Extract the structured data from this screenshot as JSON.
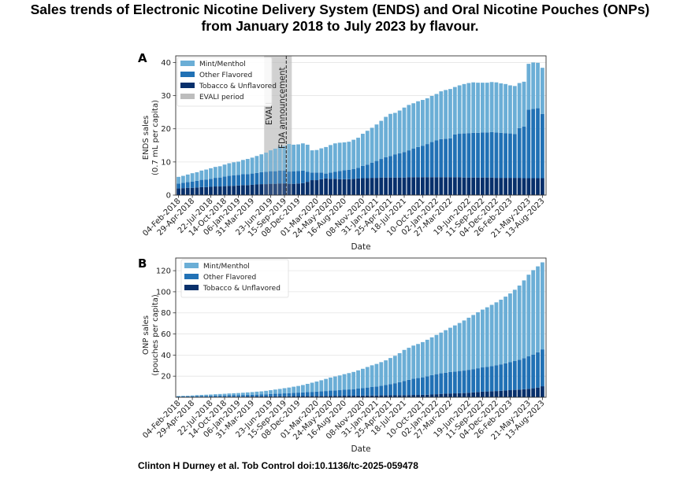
{
  "title_line1": "Sales trends of Electronic Nicotine Delivery System (ENDS) and Oral Nicotine Pouches (ONPs)",
  "title_line2": "from January 2018 to July 2023 by flavour.",
  "citation": "Clinton H Durney et al. Tob Control doi:10.1136/tc-2025-059478",
  "colors": {
    "mint": "#6baed6",
    "other": "#2171b5",
    "tobacco": "#08306b",
    "evali": "#bdbdbd"
  },
  "chart_data": [
    {
      "panel_label": "A",
      "type": "bar",
      "stacked": true,
      "xlabel": "Date",
      "ylabel_line1": "ENDS sales",
      "ylabel_line2": "(0.7 mL per capita)",
      "ylim": [
        0,
        42
      ],
      "yticks": [
        0,
        10,
        20,
        30,
        40
      ],
      "grid": true,
      "legend_position": "top-left",
      "x_tick_labels": [
        "04-Feb-2018",
        "29-Apr-2018",
        "22-Jul-2018",
        "14-Oct-2018",
        "06-Jan-2019",
        "31-Mar-2019",
        "23-Jun-2019",
        "15-Sep-2019",
        "08-Dec-2019",
        "01-Mar-2020",
        "24-May-2020",
        "16-Aug-2020",
        "08-Nov-2020",
        "31-Jan-2021",
        "25-Apr-2021",
        "18-Jul-2021",
        "10-Oct-2021",
        "02-Jan-2022",
        "27-Mar-2022",
        "19-Jun-2022",
        "11-Sep-2022",
        "04-Dec-2022",
        "26-Feb-2023",
        "21-May-2023",
        "13-Aug-2023"
      ],
      "series": [
        {
          "name": "Tobacco & Unflavored",
          "key": "tobacco",
          "values": [
            2.0,
            2.1,
            2.2,
            2.2,
            2.3,
            2.4,
            2.4,
            2.5,
            2.6,
            2.6,
            2.7,
            2.8,
            2.8,
            2.9,
            3.0,
            3.0,
            3.1,
            3.2,
            3.3,
            3.3,
            3.4,
            3.4,
            3.5,
            3.5,
            3.4,
            3.4,
            3.5,
            3.6,
            4.0,
            4.5,
            4.5,
            4.8,
            5.0,
            4.9,
            4.9,
            4.8,
            4.8,
            4.8,
            4.9,
            5.0,
            5.1,
            5.1,
            5.2,
            5.2,
            5.3,
            5.3,
            5.3,
            5.3,
            5.3,
            5.3,
            5.4,
            5.4,
            5.4,
            5.4,
            5.4,
            5.4,
            5.4,
            5.4,
            5.4,
            5.4,
            5.4,
            5.4,
            5.3,
            5.3,
            5.3,
            5.3,
            5.3,
            5.3,
            5.3,
            5.2,
            5.2,
            5.2,
            5.2,
            5.2,
            5.2,
            5.1,
            5.1,
            5.1,
            5.1,
            5.1
          ]
        },
        {
          "name": "Other Flavored",
          "key": "other",
          "values": [
            1.5,
            1.6,
            1.7,
            1.9,
            2.0,
            2.2,
            2.3,
            2.4,
            2.6,
            2.7,
            2.9,
            3.0,
            3.2,
            3.2,
            3.3,
            3.3,
            3.4,
            3.5,
            3.6,
            3.7,
            3.8,
            3.8,
            3.9,
            3.9,
            3.7,
            3.8,
            3.8,
            3.8,
            3.0,
            2.3,
            2.3,
            2.0,
            1.5,
            1.9,
            2.1,
            2.5,
            2.7,
            2.8,
            3.0,
            3.2,
            3.7,
            4.1,
            4.6,
            5.1,
            5.6,
            6.1,
            6.5,
            7.0,
            7.3,
            7.7,
            8.1,
            8.6,
            9.1,
            9.5,
            10.0,
            10.6,
            11.1,
            11.5,
            11.6,
            11.7,
            12.9,
            13.1,
            13.3,
            13.4,
            13.5,
            13.5,
            13.6,
            13.6,
            13.7,
            13.7,
            13.6,
            13.5,
            13.4,
            13.2,
            15.0,
            15.6,
            20.7,
            20.9,
            21.1,
            19.4
          ]
        },
        {
          "name": "Mint/Menthol",
          "key": "mint",
          "values": [
            2.0,
            2.1,
            2.3,
            2.5,
            2.6,
            2.8,
            3.0,
            3.2,
            3.3,
            3.4,
            3.6,
            3.8,
            3.9,
            4.0,
            4.3,
            4.6,
            4.8,
            5.1,
            5.4,
            5.8,
            6.3,
            6.8,
            7.2,
            7.4,
            8.3,
            8.0,
            8.0,
            8.2,
            8.2,
            6.7,
            6.8,
            7.3,
            8.0,
            8.3,
            8.6,
            8.5,
            8.4,
            8.5,
            8.8,
            9.1,
            9.7,
            10.2,
            10.5,
            11.0,
            11.5,
            12.2,
            12.7,
            12.5,
            12.9,
            13.4,
            13.7,
            13.7,
            13.8,
            13.8,
            13.8,
            13.9,
            14.0,
            14.4,
            14.7,
            14.9,
            14.3,
            14.6,
            14.9,
            15.1,
            15.2,
            15.1,
            15.0,
            15.0,
            15.1,
            15.1,
            14.9,
            14.8,
            14.5,
            14.5,
            13.6,
            13.5,
            13.8,
            14.0,
            13.7,
            13.9
          ]
        }
      ],
      "annotations": {
        "evali_label": "EVALI",
        "fda_label": "FDA announcement",
        "evali_start": "Aug-2019",
        "evali_end": "Feb-2020",
        "fda_date": "Jan-2020"
      },
      "legend": [
        {
          "label": "Mint/Menthol",
          "key": "mint"
        },
        {
          "label": "Other Flavored",
          "key": "other"
        },
        {
          "label": "Tobacco & Unflavored",
          "key": "tobacco"
        },
        {
          "label": "EVALI period",
          "key": "evali"
        }
      ]
    },
    {
      "panel_label": "B",
      "type": "bar",
      "stacked": true,
      "xlabel": "Date",
      "ylabel_line1": "ONP sales",
      "ylabel_line2": "(pouches per capita)",
      "ylim": [
        0,
        132
      ],
      "yticks": [
        20,
        40,
        60,
        80,
        100,
        120
      ],
      "grid": true,
      "legend_position": "top-left",
      "x_tick_labels": [
        "04-Feb-2018",
        "29-Apr-2018",
        "22-Jul-2018",
        "14-Oct-2018",
        "06-Jan-2019",
        "31-Mar-2019",
        "23-Jun-2019",
        "15-Sep-2019",
        "08-Dec-2019",
        "01-Mar-2020",
        "24-May-2020",
        "16-Aug-2020",
        "08-Nov-2020",
        "31-Jan-2021",
        "25-Apr-2021",
        "18-Jul-2021",
        "10-Oct-2021",
        "02-Jan-2022",
        "27-Mar-2022",
        "19-Jun-2022",
        "11-Sep-2022",
        "04-Dec-2022",
        "26-Feb-2023",
        "21-May-2023",
        "13-Aug-2023"
      ],
      "series": [
        {
          "name": "Tobacco & Unflavored",
          "key": "tobacco",
          "values": [
            0.3,
            0.3,
            0.3,
            0.3,
            0.4,
            0.4,
            0.4,
            0.4,
            0.5,
            0.5,
            0.5,
            0.6,
            0.6,
            0.6,
            0.6,
            0.7,
            0.7,
            0.8,
            0.8,
            0.8,
            0.9,
            0.9,
            1.0,
            1.0,
            1.0,
            1.1,
            1.1,
            1.1,
            1.2,
            1.2,
            1.3,
            1.3,
            1.3,
            1.4,
            1.4,
            1.4,
            1.5,
            1.5,
            1.5,
            1.6,
            1.6,
            1.7,
            1.7,
            1.7,
            1.8,
            1.8,
            1.9,
            1.9,
            2.0,
            2.0,
            2.1,
            2.2,
            2.2,
            2.3,
            2.4,
            2.6,
            2.9,
            3.2,
            3.4,
            3.6,
            3.7,
            3.9,
            4.0,
            4.3,
            4.6,
            5.0,
            5.3,
            5.5,
            5.7,
            5.9,
            6.1,
            6.4,
            6.7,
            7.0,
            7.3,
            7.6,
            8.0,
            8.5,
            9.2,
            10.4
          ]
        },
        {
          "name": "Other Flavored",
          "key": "other",
          "values": [
            0.5,
            0.6,
            0.6,
            0.7,
            0.8,
            0.9,
            0.9,
            1.0,
            1.1,
            1.2,
            1.2,
            1.3,
            1.3,
            1.4,
            1.5,
            1.5,
            1.6,
            1.7,
            1.8,
            2.0,
            2.2,
            2.4,
            2.5,
            2.7,
            2.9,
            3.1,
            3.3,
            3.5,
            3.7,
            3.9,
            4.1,
            4.4,
            4.6,
            4.9,
            5.1,
            5.3,
            5.6,
            5.9,
            6.2,
            6.6,
            7.0,
            7.5,
            8.0,
            8.5,
            9.1,
            9.8,
            10.6,
            11.4,
            12.3,
            13.5,
            14.4,
            15.3,
            16.0,
            16.6,
            17.5,
            18.4,
            19.0,
            19.5,
            19.9,
            20.3,
            20.7,
            21.0,
            21.3,
            21.7,
            22.1,
            22.5,
            23.0,
            23.4,
            23.9,
            24.5,
            25.1,
            25.8,
            26.5,
            27.3,
            28.3,
            29.5,
            30.8,
            32.0,
            33.4,
            35.0
          ]
        },
        {
          "name": "Mint/Menthol",
          "key": "mint",
          "values": [
            0.4,
            0.5,
            0.6,
            0.7,
            0.8,
            0.9,
            1.1,
            1.2,
            1.3,
            1.4,
            1.6,
            1.7,
            1.9,
            2.0,
            2.2,
            2.4,
            2.6,
            2.8,
            3.0,
            3.3,
            3.6,
            4.0,
            4.4,
            4.9,
            5.3,
            5.8,
            6.3,
            7.0,
            7.8,
            8.7,
            9.5,
            10.4,
            11.5,
            12.4,
            13.2,
            14.0,
            14.8,
            15.5,
            16.3,
            17.3,
            18.4,
            19.5,
            20.6,
            21.4,
            22.4,
            23.4,
            24.7,
            26.0,
            27.5,
            29.4,
            30.4,
            31.5,
            32.3,
            33.4,
            34.6,
            35.8,
            37.2,
            38.6,
            40.3,
            42.0,
            43.7,
            45.5,
            47.5,
            49.4,
            51.3,
            53.1,
            54.8,
            56.4,
            58.0,
            59.6,
            61.3,
            63.2,
            65.2,
            67.6,
            70.3,
            73.7,
            77.4,
            80.0,
            81.5,
            82.5
          ]
        }
      ],
      "legend": [
        {
          "label": "Mint/Menthol",
          "key": "mint"
        },
        {
          "label": "Other Flavored",
          "key": "other"
        },
        {
          "label": "Tobacco & Unflavored",
          "key": "tobacco"
        }
      ]
    }
  ]
}
